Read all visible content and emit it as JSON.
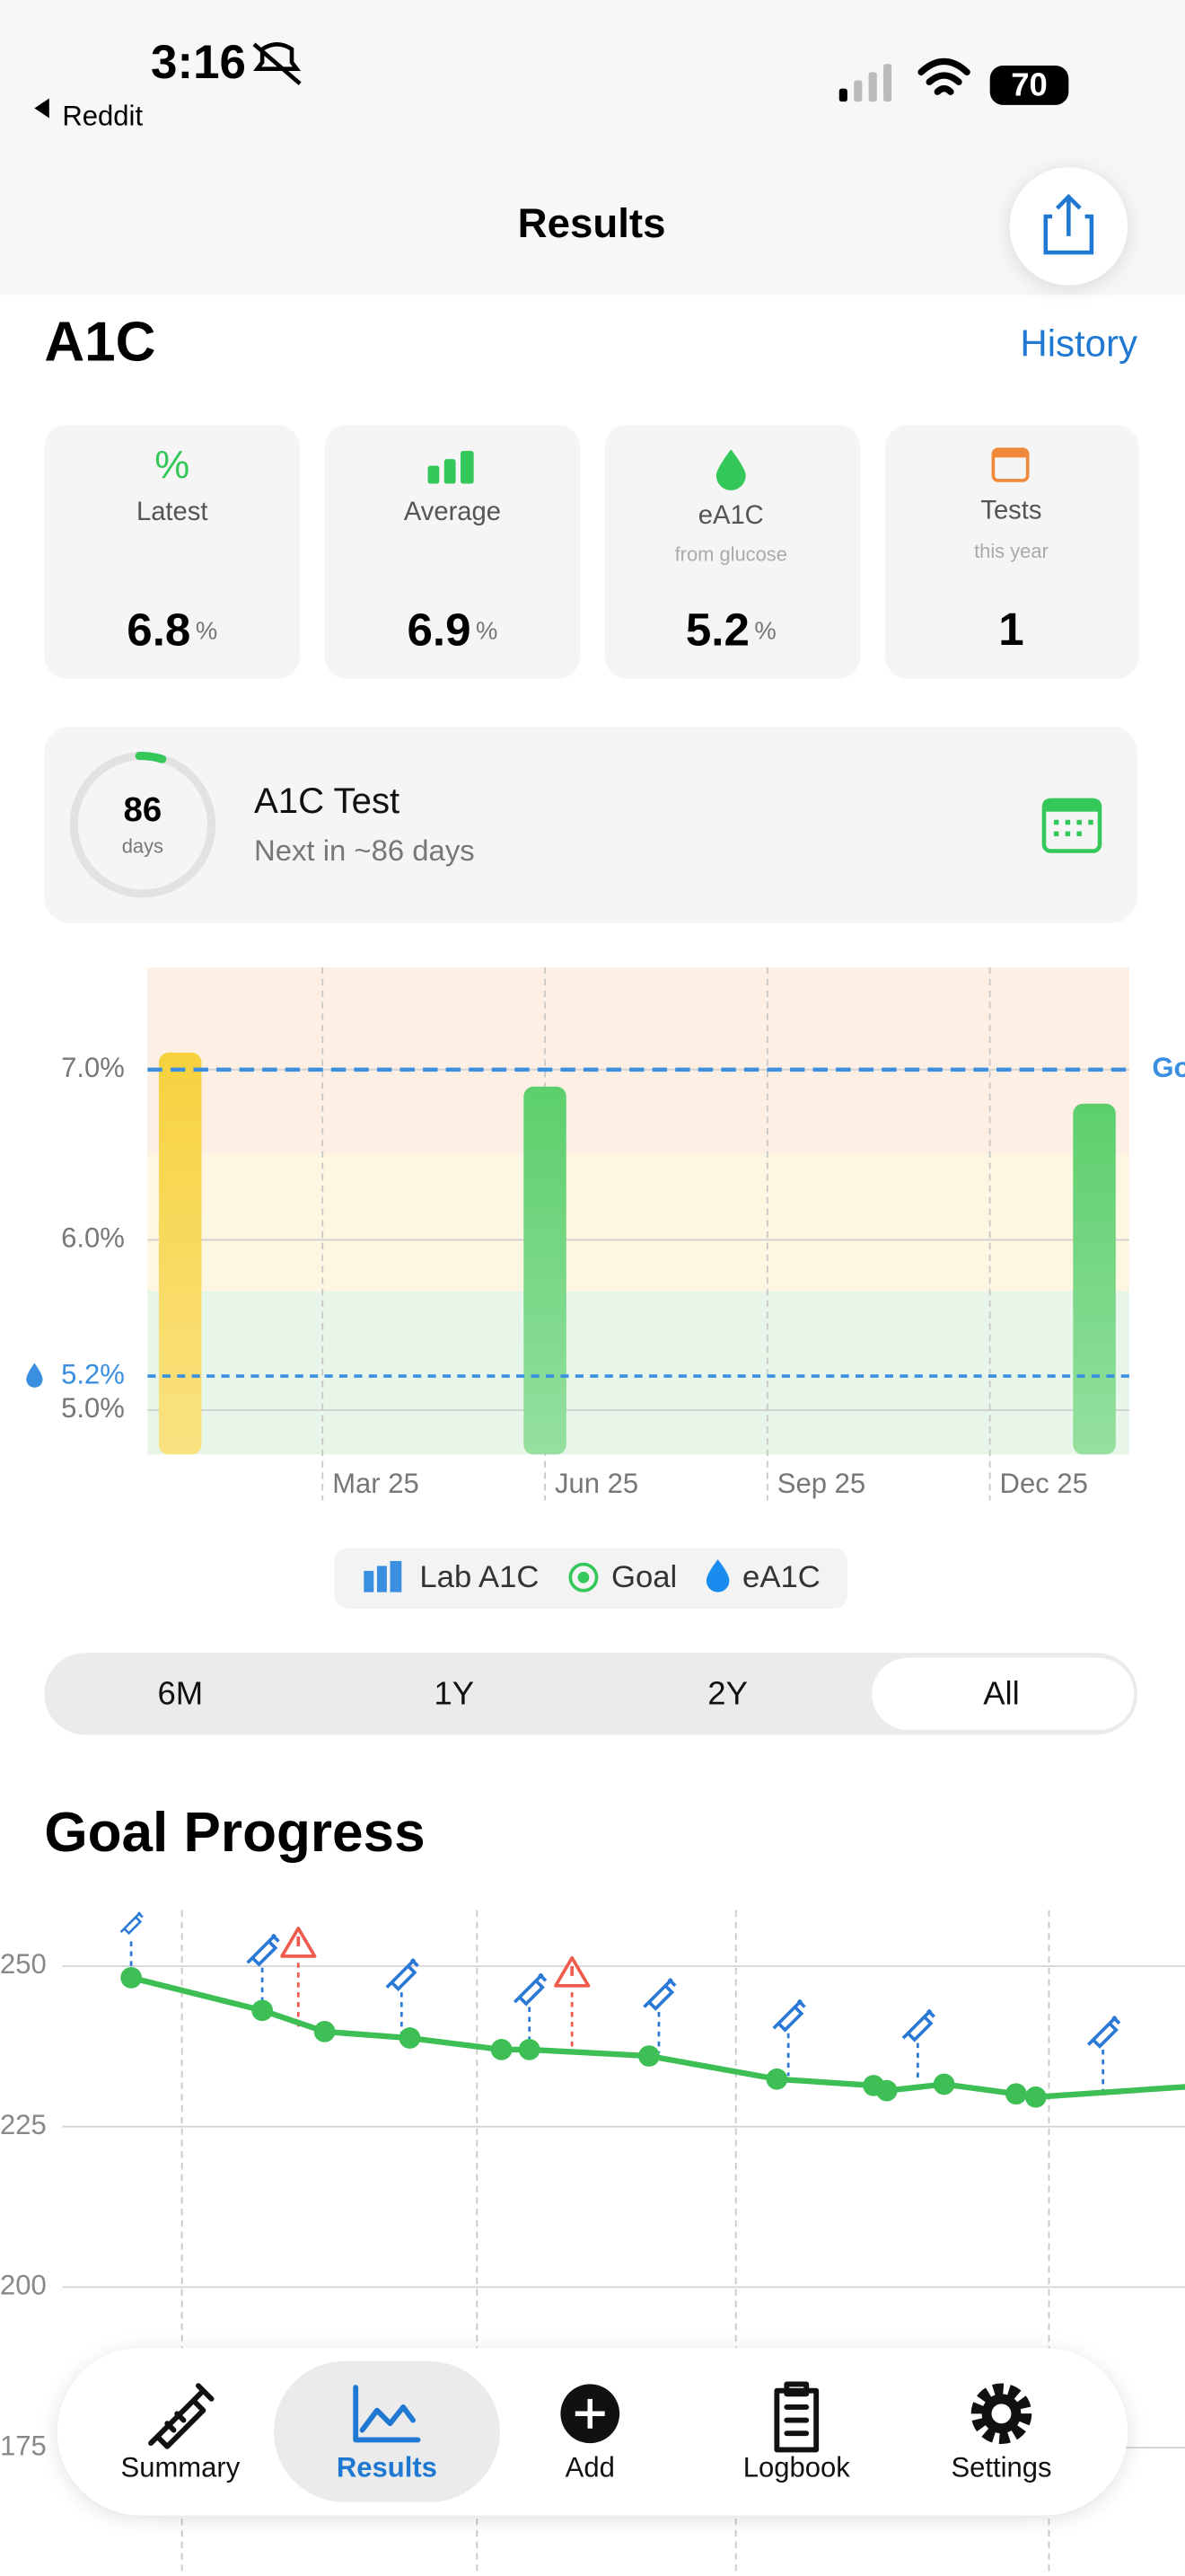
{
  "status_bar": {
    "time": "3:16",
    "back_label": "Reddit",
    "battery": "70"
  },
  "header": {
    "title": "Results"
  },
  "a1c": {
    "title": "A1C",
    "history_link": "History",
    "cards": [
      {
        "icon": "%",
        "label": "Latest",
        "value": "6.8",
        "unit": "%"
      },
      {
        "label": "Average",
        "value": "6.9",
        "unit": "%"
      },
      {
        "label": "eA1C",
        "sublabel": "from glucose",
        "value": "5.2",
        "unit": "%"
      },
      {
        "label": "Tests",
        "sublabel": "this year",
        "value": "1"
      }
    ]
  },
  "next_test": {
    "days": "86",
    "days_unit": "days",
    "title": "A1C Test",
    "subtitle": "Next in ~86 days"
  },
  "chart_data": [
    {
      "type": "bar",
      "x": [
        1.08,
        6,
        13.41
      ],
      "values": [
        7.1,
        6.9,
        6.8
      ],
      "colors": [
        "#f7d23e",
        "#5ccf6c",
        "#5ccf6c"
      ],
      "xlim": [
        0.64,
        13.88
      ],
      "xticks": [
        {
          "value": 3,
          "label": "Mar 25"
        },
        {
          "value": 6,
          "label": "Jun 25"
        },
        {
          "value": 9,
          "label": "Sep 25"
        },
        {
          "value": 12,
          "label": "Dec 25"
        }
      ],
      "ylim": [
        4.74,
        7.6
      ],
      "yticks": [
        {
          "value": 5,
          "label": "5.0%"
        },
        {
          "value": 6,
          "label": "6.0%"
        },
        {
          "value": 7,
          "label": "7.0%"
        }
      ],
      "bands": [
        {
          "from": 6.5,
          "to": 7.6,
          "color": "#fdefe4"
        },
        {
          "from": 5.7,
          "to": 6.5,
          "color": "#fdf6e0"
        },
        {
          "from": 4.74,
          "to": 5.7,
          "color": "#e8f6e9"
        }
      ],
      "goal": {
        "value": 7,
        "label": "Goal",
        "color": "#3b8fe0"
      },
      "eA1C": {
        "value": 5.2,
        "label": "5.2%",
        "color": "#3b8fe0"
      },
      "legend": [
        "Lab A1C",
        "Goal",
        "eA1C"
      ],
      "grid": true
    },
    {
      "type": "line",
      "color": "#3dbf55",
      "x": [
        11.07,
        22.13,
        27.39,
        34.58,
        42.32,
        44.67,
        54.77,
        65.56,
        73.72,
        74.83,
        79.67,
        85.75,
        87.41,
        101.66
      ],
      "values": [
        248.2,
        243.1,
        239.8,
        238.8,
        237.0,
        237.0,
        236.0,
        232.4,
        231.4,
        230.6,
        231.6,
        230.1,
        229.6,
        231.4
      ],
      "xlim": [
        0,
        100
      ],
      "xgrid": [
        15.35,
        40.25,
        62.1,
        88.52
      ],
      "ylim": [
        155,
        258.7
      ],
      "yticks": [
        175,
        200,
        225,
        250
      ],
      "grid": true
    }
  ],
  "range_selector": {
    "options": [
      "6M",
      "1Y",
      "2Y",
      "All"
    ],
    "selected": 3
  },
  "goal_progress": {
    "title": "Goal Progress"
  },
  "tab_bar": {
    "items": [
      "Summary",
      "Results",
      "Add",
      "Logbook",
      "Settings"
    ],
    "selected": 1
  }
}
